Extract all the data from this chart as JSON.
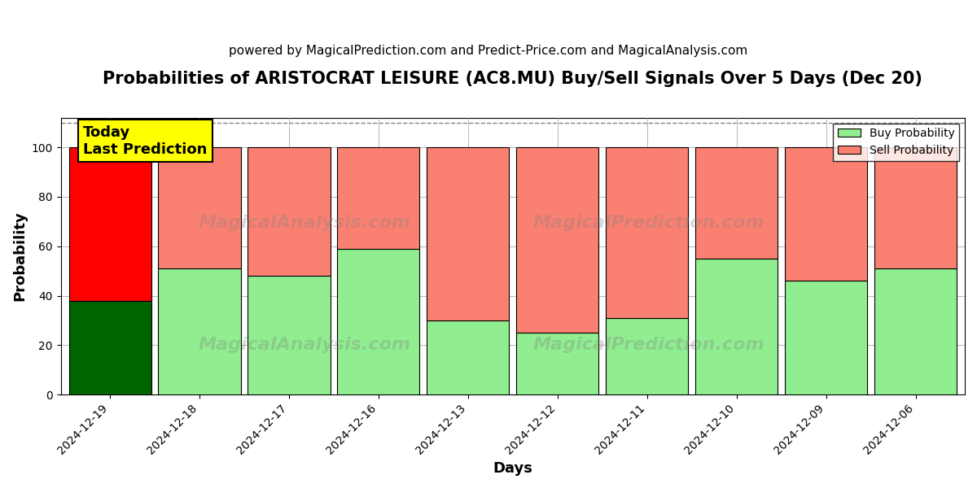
{
  "title": "Probabilities of ARISTOCRAT LEISURE (AC8.MU) Buy/Sell Signals Over 5 Days (Dec 20)",
  "subtitle": "powered by MagicalPrediction.com and Predict-Price.com and MagicalAnalysis.com",
  "xlabel": "Days",
  "ylabel": "Probability",
  "categories": [
    "2024-12-19",
    "2024-12-18",
    "2024-12-17",
    "2024-12-16",
    "2024-12-13",
    "2024-12-12",
    "2024-12-11",
    "2024-12-10",
    "2024-12-09",
    "2024-12-06"
  ],
  "buy_values": [
    38,
    51,
    48,
    59,
    30,
    25,
    31,
    55,
    46,
    51
  ],
  "sell_values": [
    62,
    49,
    52,
    41,
    70,
    75,
    69,
    45,
    54,
    49
  ],
  "buy_colors": [
    "#006400",
    "#90EE90",
    "#90EE90",
    "#90EE90",
    "#90EE90",
    "#90EE90",
    "#90EE90",
    "#90EE90",
    "#90EE90",
    "#90EE90"
  ],
  "sell_colors": [
    "#FF0000",
    "#FA8072",
    "#FA8072",
    "#FA8072",
    "#FA8072",
    "#FA8072",
    "#FA8072",
    "#FA8072",
    "#FA8072",
    "#FA8072"
  ],
  "today_label": "Today\nLast Prediction",
  "today_index": 0,
  "ylim": [
    0,
    112
  ],
  "yticks": [
    0,
    20,
    40,
    60,
    80,
    100
  ],
  "dashed_line_y": 110,
  "legend_buy_label": "Buy Probability",
  "legend_sell_label": "Sell Probability",
  "background_color": "#ffffff",
  "grid_color": "#aaaaaa",
  "title_fontsize": 15,
  "subtitle_fontsize": 11,
  "label_fontsize": 13,
  "tick_fontsize": 10
}
